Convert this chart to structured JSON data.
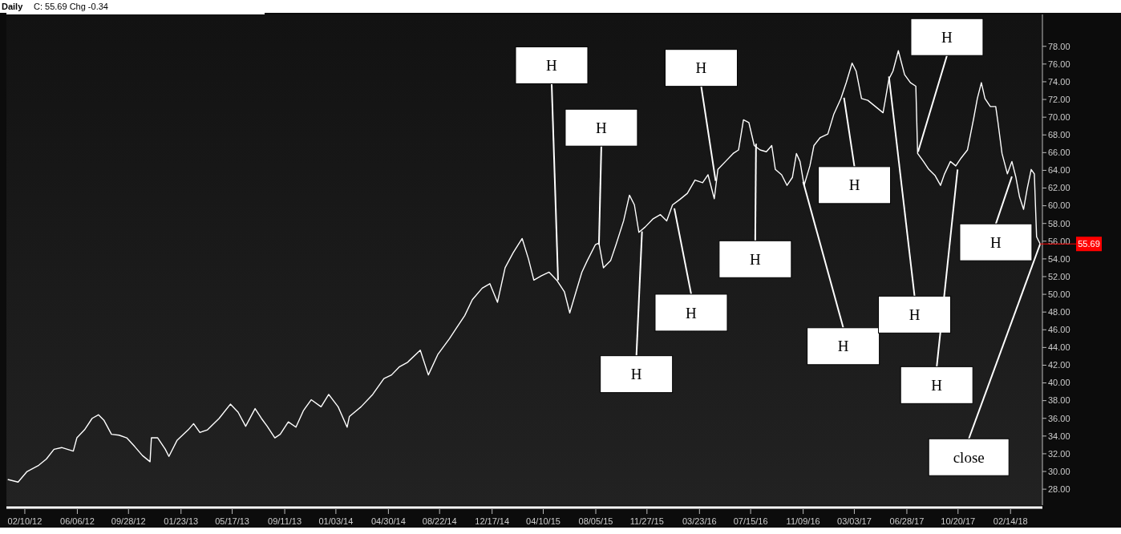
{
  "chart_data": {
    "type": "line",
    "title": "Daily",
    "subtitle": "C: 55.69  Chg -0.34",
    "xlim": [
      "2011-12-31",
      "2018-04-26"
    ],
    "xticks": [
      {
        "value": "2012-02-10",
        "label": "02/10/12"
      },
      {
        "value": "2012-06-06",
        "label": "06/06/12"
      },
      {
        "value": "2012-09-28",
        "label": "09/28/12"
      },
      {
        "value": "2013-01-23",
        "label": "01/23/13"
      },
      {
        "value": "2013-05-17",
        "label": "05/17/13"
      },
      {
        "value": "2013-09-11",
        "label": "09/11/13"
      },
      {
        "value": "2014-01-03",
        "label": "01/03/14"
      },
      {
        "value": "2014-04-30",
        "label": "04/30/14"
      },
      {
        "value": "2014-08-22",
        "label": "08/22/14"
      },
      {
        "value": "2014-12-17",
        "label": "12/17/14"
      },
      {
        "value": "2015-04-10",
        "label": "04/10/15"
      },
      {
        "value": "2015-08-05",
        "label": "08/05/15"
      },
      {
        "value": "2015-11-27",
        "label": "11/27/15"
      },
      {
        "value": "2016-03-23",
        "label": "03/23/16"
      },
      {
        "value": "2016-07-15",
        "label": "07/15/16"
      },
      {
        "value": "2016-11-09",
        "label": "11/09/16"
      },
      {
        "value": "2017-03-03",
        "label": "03/03/17"
      },
      {
        "value": "2017-06-28",
        "label": "06/28/17"
      },
      {
        "value": "2017-10-20",
        "label": "10/20/17"
      },
      {
        "value": "2018-02-14",
        "label": "02/14/18"
      }
    ],
    "ylim": [
      26.2,
      81.6
    ],
    "yticks": [
      {
        "value": 28,
        "label": "28.00"
      },
      {
        "value": 30,
        "label": "30.00"
      },
      {
        "value": 32,
        "label": "32.00"
      },
      {
        "value": 34,
        "label": "34.00"
      },
      {
        "value": 36,
        "label": "36.00"
      },
      {
        "value": 38,
        "label": "38.00"
      },
      {
        "value": 40,
        "label": "40.00"
      },
      {
        "value": 42,
        "label": "42.00"
      },
      {
        "value": 44,
        "label": "44.00"
      },
      {
        "value": 46,
        "label": "46.00"
      },
      {
        "value": 48,
        "label": "48.00"
      },
      {
        "value": 50,
        "label": "50.00"
      },
      {
        "value": 52,
        "label": "52.00"
      },
      {
        "value": 54,
        "label": "54.00"
      },
      {
        "value": 56,
        "label": "56.00"
      },
      {
        "value": 58,
        "label": "58.00"
      },
      {
        "value": 60,
        "label": "60.00"
      },
      {
        "value": 62,
        "label": "62.00"
      },
      {
        "value": 64,
        "label": "64.00"
      },
      {
        "value": 66,
        "label": "66.00"
      },
      {
        "value": 68,
        "label": "68.00"
      },
      {
        "value": 70,
        "label": "70.00"
      },
      {
        "value": 72,
        "label": "72.00"
      },
      {
        "value": 74,
        "label": "74.00"
      },
      {
        "value": 76,
        "label": "76.00"
      },
      {
        "value": 78,
        "label": "78.00"
      }
    ],
    "series": [
      {
        "color": "#ffffff",
        "x": [
          "2012-01-03",
          "2012-01-26",
          "2012-02-15",
          "2012-03-12",
          "2012-03-29",
          "2012-04-15",
          "2012-05-02",
          "2012-05-28",
          "2012-06-05",
          "2012-06-22",
          "2012-07-09",
          "2012-07-23",
          "2012-08-04",
          "2012-08-21",
          "2012-09-07",
          "2012-09-24",
          "2012-10-12",
          "2012-10-29",
          "2012-11-15",
          "2012-11-18",
          "2012-12-02",
          "2012-12-19",
          "2012-12-27",
          "2013-01-14",
          "2013-02-08",
          "2013-02-20",
          "2013-03-06",
          "2013-03-23",
          "2013-04-18",
          "2013-05-13",
          "2013-05-30",
          "2013-06-16",
          "2013-07-07",
          "2013-07-21",
          "2013-08-03",
          "2013-08-20",
          "2013-09-01",
          "2013-09-19",
          "2013-10-06",
          "2013-10-23",
          "2013-11-09",
          "2013-12-01",
          "2013-12-18",
          "2014-01-08",
          "2014-01-28",
          "2014-02-02",
          "2014-02-28",
          "2014-03-26",
          "2014-04-20",
          "2014-05-07",
          "2014-05-24",
          "2014-06-11",
          "2014-07-10",
          "2014-07-28",
          "2014-08-18",
          "2014-09-13",
          "2014-09-30",
          "2014-10-17",
          "2014-11-03",
          "2014-11-25",
          "2014-12-12",
          "2014-12-29",
          "2015-01-15",
          "2015-02-02",
          "2015-02-22",
          "2015-03-08",
          "2015-03-20",
          "2015-04-06",
          "2015-04-23",
          "2015-05-10",
          "2015-05-27",
          "2015-06-08",
          "2015-06-22",
          "2015-07-05",
          "2015-07-17",
          "2015-08-04",
          "2015-08-12",
          "2015-08-22",
          "2015-09-07",
          "2015-09-19",
          "2015-10-06",
          "2015-10-19",
          "2015-10-30",
          "2015-11-09",
          "2015-11-23",
          "2015-12-10",
          "2015-12-27",
          "2016-01-10",
          "2016-01-23",
          "2016-02-08",
          "2016-02-25",
          "2016-03-13",
          "2016-03-30",
          "2016-04-11",
          "2016-04-25",
          "2016-05-03",
          "2016-05-20",
          "2016-06-06",
          "2016-06-18",
          "2016-06-29",
          "2016-07-11",
          "2016-07-23",
          "2016-08-05",
          "2016-08-19",
          "2016-08-31",
          "2016-09-08",
          "2016-09-22",
          "2016-10-04",
          "2016-10-16",
          "2016-10-25",
          "2016-11-02",
          "2016-11-11",
          "2016-11-24",
          "2016-12-03",
          "2016-12-17",
          "2017-01-03",
          "2017-01-16",
          "2017-02-01",
          "2017-02-13",
          "2017-02-26",
          "2017-03-07",
          "2017-03-19",
          "2017-04-02",
          "2017-04-19",
          "2017-05-06",
          "2017-05-19",
          "2017-05-28",
          "2017-06-09",
          "2017-06-23",
          "2017-07-06",
          "2017-07-18",
          "2017-07-22",
          "2017-08-04",
          "2017-08-16",
          "2017-08-30",
          "2017-09-11",
          "2017-09-20",
          "2017-10-03",
          "2017-10-15",
          "2017-10-27",
          "2017-11-10",
          "2017-11-24",
          "2017-12-02",
          "2017-12-11",
          "2017-12-19",
          "2017-12-31",
          "2018-01-12",
          "2018-01-17",
          "2018-01-26",
          "2018-02-07",
          "2018-02-17",
          "2018-02-26",
          "2018-03-06",
          "2018-03-15",
          "2018-03-23",
          "2018-04-01",
          "2018-04-08",
          "2018-04-13",
          "2018-04-21"
        ],
        "values": [
          29.1,
          28.8,
          30.0,
          30.7,
          31.4,
          32.5,
          32.7,
          32.3,
          33.8,
          34.7,
          36.0,
          36.4,
          35.8,
          34.2,
          34.1,
          33.8,
          32.8,
          31.8,
          31.1,
          33.8,
          33.8,
          32.5,
          31.7,
          33.5,
          34.7,
          35.4,
          34.4,
          34.7,
          36.0,
          37.6,
          36.7,
          35.1,
          37.1,
          36.0,
          35.1,
          33.8,
          34.2,
          35.6,
          35.0,
          36.9,
          38.1,
          37.3,
          38.7,
          37.3,
          35.0,
          36.2,
          37.3,
          38.7,
          40.5,
          40.9,
          41.8,
          42.3,
          43.7,
          40.9,
          43.2,
          45.0,
          46.3,
          47.6,
          49.4,
          50.7,
          51.2,
          49.1,
          53.0,
          54.7,
          56.3,
          54.0,
          51.6,
          52.1,
          52.5,
          51.6,
          50.3,
          47.9,
          50.3,
          52.5,
          53.8,
          55.6,
          55.8,
          53.0,
          53.8,
          55.6,
          58.3,
          61.2,
          60.1,
          57.0,
          57.6,
          58.5,
          59.0,
          58.3,
          60.1,
          60.7,
          61.4,
          62.9,
          62.6,
          63.5,
          60.8,
          64.1,
          65.0,
          65.9,
          66.3,
          69.7,
          69.4,
          66.8,
          66.3,
          66.1,
          66.8,
          64.1,
          63.5,
          62.3,
          63.2,
          65.9,
          65.0,
          62.3,
          64.5,
          66.8,
          67.7,
          68.1,
          70.3,
          72.1,
          73.9,
          76.1,
          75.2,
          72.1,
          71.9,
          71.2,
          70.5,
          74.3,
          75.2,
          77.5,
          74.8,
          73.9,
          73.5,
          65.9,
          65.0,
          64.1,
          63.4,
          62.3,
          63.6,
          65.0,
          64.5,
          65.4,
          66.3,
          69.9,
          72.1,
          73.9,
          72.1,
          71.2,
          71.2,
          69.4,
          65.9,
          63.6,
          65.0,
          63.2,
          61.0,
          59.6,
          61.9,
          64.1,
          63.6,
          56.5,
          55.69
        ]
      }
    ],
    "annotations": [
      {
        "text": "H",
        "x": "2015-05-13",
        "y": 51.6
      },
      {
        "text": "H",
        "x": "2015-08-12",
        "y": 55.6
      },
      {
        "text": "H",
        "x": "2015-11-16",
        "y": 57.1
      },
      {
        "text": "H",
        "x": "2016-01-27",
        "y": 59.7
      },
      {
        "text": "H",
        "x": "2016-04-28",
        "y": 62.8
      },
      {
        "text": "H",
        "x": "2016-07-27",
        "y": 67.0
      },
      {
        "text": "H",
        "x": "2016-11-09",
        "y": 62.7
      },
      {
        "text": "H",
        "x": "2017-02-08",
        "y": 72.2
      },
      {
        "text": "H",
        "x": "2017-05-19",
        "y": 74.6
      },
      {
        "text": "H",
        "x": "2017-07-23",
        "y": 66.1
      },
      {
        "text": "H",
        "x": "2017-10-19",
        "y": 64.1
      },
      {
        "text": "H",
        "x": "2018-02-17",
        "y": 63.3
      },
      {
        "text": "close",
        "x": "2018-04-21",
        "y": 55.69
      },
      {
        "text": "55.69",
        "x": "2018-04-21",
        "y": 55.69
      }
    ]
  }
}
